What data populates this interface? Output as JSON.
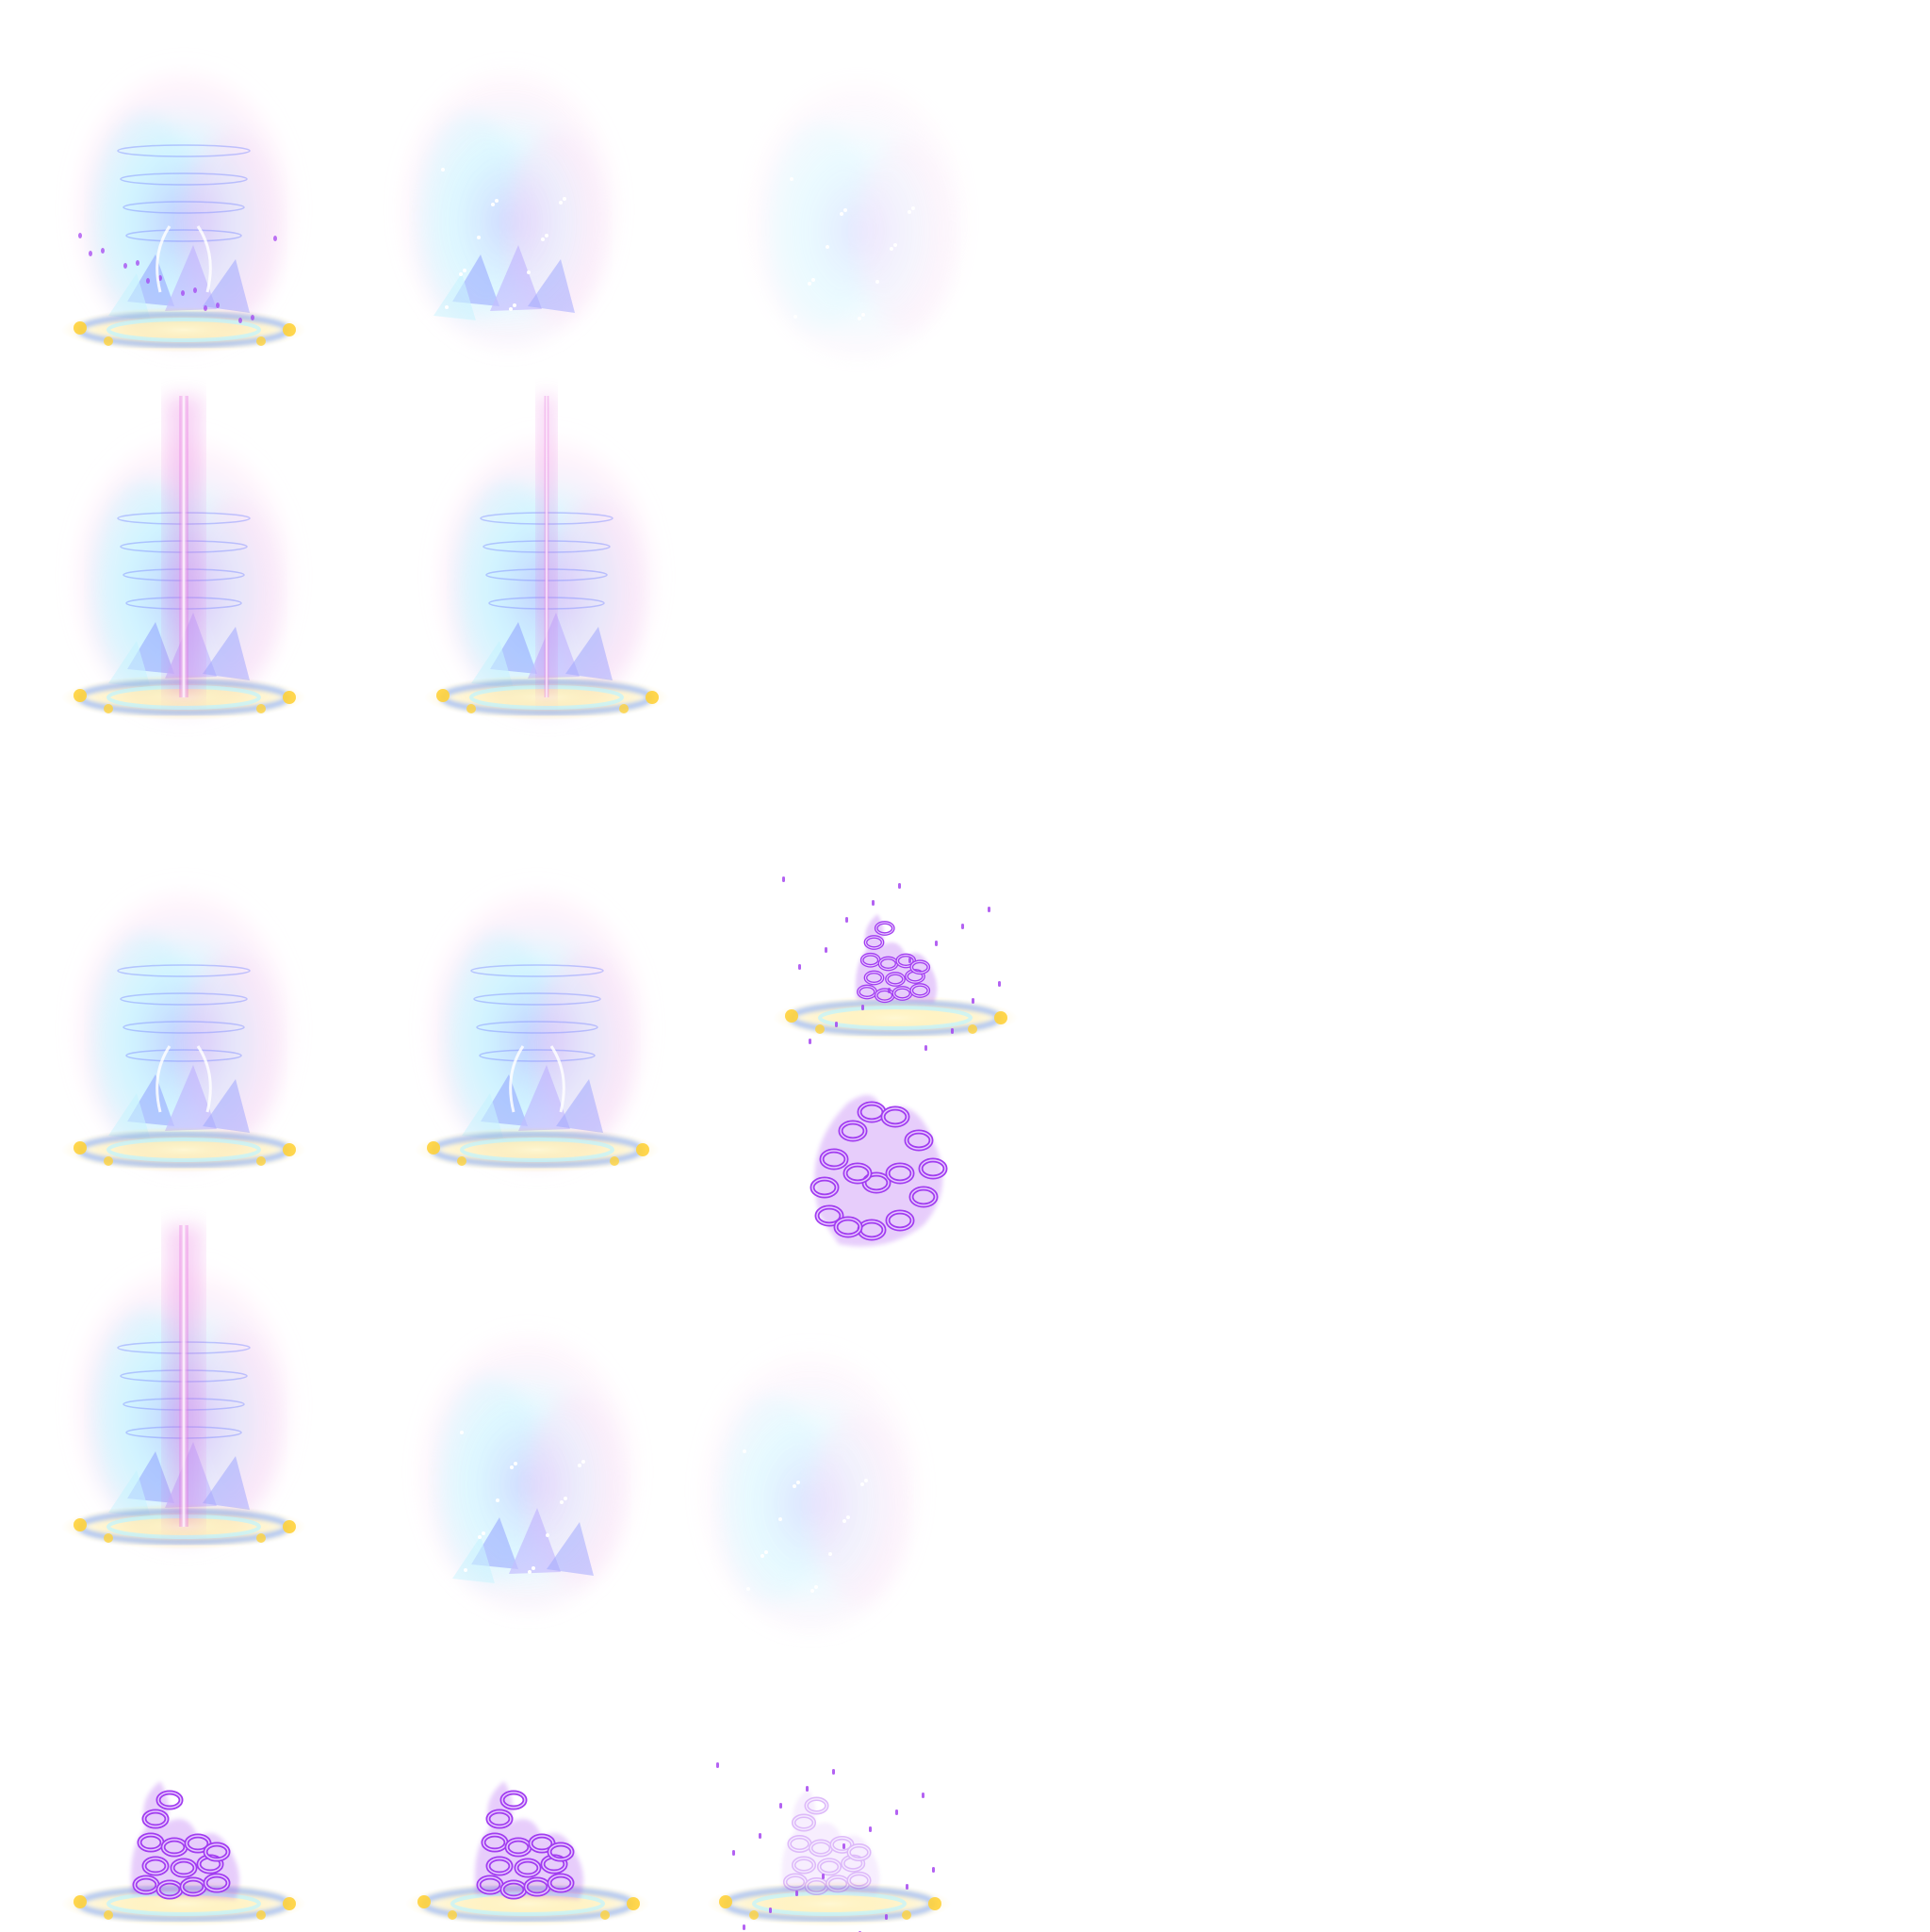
{
  "sprite_sheet": {
    "background": "#ffffff",
    "palette": {
      "aura_violet": "#b7a6ff",
      "aura_cyan": "#bff3ff",
      "aura_pink": "#ffd0f2",
      "beam_magenta": "#e35bd8",
      "crystal_blue": "#7f8cff",
      "ground_gold": "#ffd23a",
      "ground_blue": "#6f9dff",
      "chain_purple": "#a13cf0"
    },
    "frames": [
      {
        "id": "f1",
        "type": "aura",
        "elements": [
          "aura",
          "rings",
          "crystals",
          "ground",
          "sparks",
          "horns"
        ]
      },
      {
        "id": "f2",
        "type": "aura",
        "elements": [
          "aura",
          "crystals",
          "sparkles"
        ],
        "opacity": 0.75
      },
      {
        "id": "f3",
        "type": "aura",
        "elements": [
          "aura",
          "sparkles"
        ],
        "opacity": 0.45
      },
      {
        "id": "f4",
        "type": "beam",
        "elements": [
          "aura",
          "rings",
          "crystals",
          "ground",
          "beam_wide"
        ]
      },
      {
        "id": "f5",
        "type": "beam",
        "elements": [
          "aura",
          "rings",
          "crystals",
          "ground",
          "beam_thin"
        ]
      },
      {
        "id": "f6",
        "type": "chain",
        "elements": [
          "ground",
          "chains",
          "particles"
        ],
        "chain_scale": 0.75
      },
      {
        "id": "f7",
        "type": "aura",
        "elements": [
          "aura",
          "rings",
          "crystals",
          "ground",
          "horns"
        ]
      },
      {
        "id": "f8",
        "type": "aura",
        "elements": [
          "aura",
          "rings",
          "crystals",
          "ground",
          "horns"
        ]
      },
      {
        "id": "f9",
        "type": "chain",
        "elements": [
          "chains_swirl"
        ]
      },
      {
        "id": "f10",
        "type": "beam",
        "elements": [
          "aura",
          "rings",
          "crystals",
          "ground",
          "beam_wide"
        ]
      },
      {
        "id": "f11",
        "type": "aura",
        "elements": [
          "aura",
          "crystals",
          "sparkles"
        ],
        "opacity": 0.75
      },
      {
        "id": "f12",
        "type": "aura",
        "elements": [
          "aura",
          "sparkles"
        ],
        "opacity": 0.55
      },
      {
        "id": "f13",
        "type": "chain",
        "elements": [
          "ground",
          "chains"
        ]
      },
      {
        "id": "f14",
        "type": "chain",
        "elements": [
          "ground",
          "chains"
        ]
      },
      {
        "id": "f15",
        "type": "chain",
        "elements": [
          "ground",
          "chains_faded",
          "particles"
        ]
      }
    ]
  }
}
